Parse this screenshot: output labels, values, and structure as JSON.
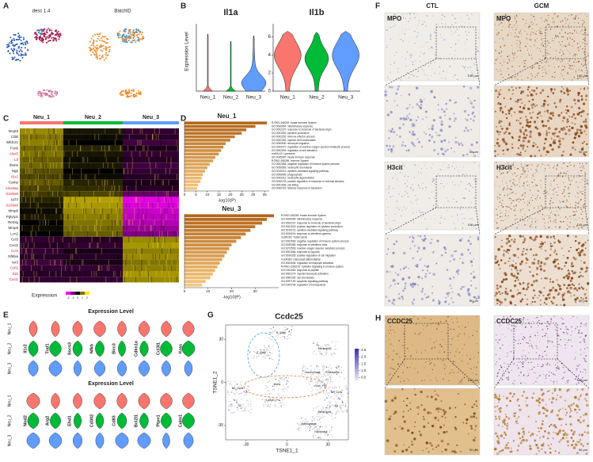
{
  "panel_labels": [
    "A",
    "B",
    "C",
    "D",
    "E",
    "F",
    "G",
    "H"
  ],
  "A": {
    "titles": [
      "desc 1.4",
      "BatchID"
    ]
  },
  "B": {
    "ylabel": "Expression Level",
    "colors": [
      "#f8766d",
      "#00ba38",
      "#619cff"
    ],
    "charts": [
      {
        "type": "violin",
        "title": "Il1a",
        "categories": [
          "Neu_1",
          "Neu_2",
          "Neu_3"
        ],
        "values": [
          6.3,
          5.5,
          6.1
        ],
        "ylim": [
          0,
          7
        ]
      },
      {
        "type": "violin",
        "title": "Il1b",
        "categories": [
          "Neu_1",
          "Neu_2",
          "Neu_3"
        ],
        "values": [
          6.6,
          6.5,
          6.6
        ],
        "ylim": [
          0,
          7
        ],
        "yticks": [
          0,
          2,
          4,
          6
        ]
      }
    ]
  },
  "C": {
    "type": "heatmap",
    "groups": [
      "Neu_1",
      "Neu_2",
      "Neu_3"
    ],
    "group_colors": [
      "#f8766d",
      "#00ba38",
      "#619cff"
    ],
    "genes": [
      {
        "name": "Mcpt8",
        "color": "#222222",
        "values": [
          1.2,
          0.2,
          -0.4
        ]
      },
      {
        "name": "Cd5l",
        "color": "#222222",
        "values": [
          1.0,
          0.1,
          -0.3
        ]
      },
      {
        "name": "Wfdc21",
        "color": "#222222",
        "values": [
          1.1,
          0.0,
          -0.5
        ]
      },
      {
        "name": "Fcnb",
        "color": "#222222",
        "values": [
          0.9,
          0.3,
          -0.2
        ]
      },
      {
        "name": "Alox5",
        "color": "#d42020",
        "values": [
          1.0,
          0.2,
          -0.4
        ]
      },
      {
        "name": "Ltf",
        "color": "#d42020",
        "values": [
          0.8,
          0.1,
          -0.3
        ]
      },
      {
        "name": "Ifitm6",
        "color": "#222222",
        "values": [
          0.9,
          0.2,
          -0.5
        ]
      },
      {
        "name": "Ngp",
        "color": "#222222",
        "values": [
          0.7,
          0.0,
          -0.4
        ]
      },
      {
        "name": "Il1r2",
        "color": "#d42020",
        "values": [
          0.6,
          0.1,
          -0.3
        ]
      },
      {
        "name": "Camp",
        "color": "#222222",
        "values": [
          0.8,
          0.3,
          -0.2
        ]
      },
      {
        "name": "Alox5ap",
        "color": "#d42020",
        "values": [
          0.6,
          0.4,
          -0.3
        ]
      },
      {
        "name": "S100a9",
        "color": "#d42020",
        "values": [
          0.5,
          0.6,
          -0.8
        ]
      },
      {
        "name": "Lyz2",
        "color": "#222222",
        "values": [
          0.3,
          1.4,
          -1.8
        ]
      },
      {
        "name": "S100a8",
        "color": "#d42020",
        "values": [
          0.2,
          1.3,
          -1.7
        ]
      },
      {
        "name": "Mmp8",
        "color": "#222222",
        "values": [
          0.1,
          1.2,
          -1.6
        ]
      },
      {
        "name": "Pglyrp1",
        "color": "#222222",
        "values": [
          0.2,
          1.1,
          -1.5
        ]
      },
      {
        "name": "Retnlg",
        "color": "#222222",
        "values": [
          0.0,
          1.0,
          -1.4
        ]
      },
      {
        "name": "Mmp9",
        "color": "#222222",
        "values": [
          0.1,
          0.9,
          -1.2
        ]
      },
      {
        "name": "Lcn2",
        "color": "#222222",
        "values": [
          0.0,
          0.8,
          -1.0
        ]
      },
      {
        "name": "Ccl3",
        "color": "#222222",
        "values": [
          -0.4,
          -0.3,
          1.2
        ]
      },
      {
        "name": "Cxcl2",
        "color": "#222222",
        "values": [
          -0.3,
          -0.4,
          1.3
        ]
      },
      {
        "name": "Ccl4",
        "color": "#d42020",
        "values": [
          -0.4,
          -0.2,
          1.1
        ]
      },
      {
        "name": "Nfkbia",
        "color": "#222222",
        "values": [
          -0.3,
          -0.3,
          1.2
        ]
      },
      {
        "name": "Ier3",
        "color": "#222222",
        "values": [
          -0.5,
          -0.2,
          1.0
        ]
      },
      {
        "name": "Ccrl2",
        "color": "#d42020",
        "values": [
          -0.4,
          -0.4,
          1.1
        ]
      },
      {
        "name": "Il1b",
        "color": "#d42020",
        "values": [
          -0.3,
          -0.3,
          1.3
        ]
      },
      {
        "name": "Cxcl1",
        "color": "#d42020",
        "values": [
          -0.4,
          -0.4,
          1.2
        ]
      }
    ],
    "legend_title": "Expression",
    "legend_ticks": [
      -2,
      -1,
      0,
      1,
      2
    ]
  },
  "D": {
    "xlabel": "-log10(P)",
    "color_top": "#b3671a",
    "color_bottom": "#f5c77e",
    "charts": [
      {
        "type": "bar",
        "title": "Neu_1",
        "xlim": [
          0,
          37
        ],
        "xticks": [
          0,
          5,
          10,
          15,
          20,
          25,
          30,
          35
        ],
        "categories": [
          "R-RNO-168249: Innate Immune System",
          "GO:0006954: inflammatory response",
          "GO:0002237: response to molecule of bacterial origin",
          "GO:0001816: cytokine production",
          "GO:0002252: immune effector process",
          "GO:0002262: myeloid cell homeostasis",
          "GO:0050900: leukocyte migration",
          "GO:2000377: regulation of reactive oxygen species metabolic process",
          "GO:0002694: regulation of cell activation",
          "rno04142: Lysosome",
          "GO:0045087: innate immune response",
          "R-RNO-168256: Immune System",
          "GO:0002683: negative regulation of immune system process",
          "GO:0030593: neutrophil chemotaxis",
          "GO:0019221: cytokine-mediated signaling pathway",
          "GO:0006909: phagocytosis",
          "GO:0043312: neutrophil degranulation",
          "GO:0032103: positive regulation of response to external stimulus",
          "GO:0001906: cell killing",
          "GO:0042742: defense response to bacterium"
        ],
        "values": [
          36,
          31,
          27,
          25,
          22,
          20,
          18,
          17,
          16,
          15,
          13.5,
          12.5,
          11,
          10,
          9,
          8,
          7.5,
          7,
          6,
          5.5
        ]
      },
      {
        "type": "bar",
        "title": "Neu_3",
        "xlim": [
          0,
          40
        ],
        "xticks": [
          0,
          10,
          20,
          30
        ],
        "categories": [
          "R-RNO-168249: Innate Immune System",
          "GO:0006954: inflammatory response",
          "GO:0002237: response to molecule of bacterial origin",
          "GO:0001819: positive regulation of cytokine production",
          "GO:0019221: cytokine-mediated signaling pathway",
          "GO:0034341: response to interferon-gamma",
          "rno05152: Tuberculosis",
          "GO:0002683: negative regulation of immune system process",
          "GO:0035456: response to interferon-beta",
          "GO:0072593: reactive oxygen species metabolic process",
          "GO:0001666: response to hypoxia",
          "GO:0030335: positive regulation of cell migration",
          "rno04380: Osteoclast differentiation",
          "GO:0002694: regulation of leukocyte activation",
          "R-RNO-1280215: Cytokine Signaling in Immune system",
          "GO:1901652: response to peptide",
          "GO:0002274: myeloid leukocyte activation",
          "GO:0060326: cell chemotaxis",
          "GO:0097190: apoptotic signaling pathway",
          "GO:1903706: regulation of hemopoiesis"
        ],
        "values": [
          38,
          35,
          33,
          30,
          28,
          26,
          24,
          22,
          20,
          19,
          18,
          17,
          16,
          15,
          14,
          13,
          12,
          11,
          9,
          7.5
        ]
      }
    ]
  },
  "E": {
    "title": "Expression Level",
    "groups": [
      "Neu_1",
      "Neu_2",
      "Neu_3"
    ],
    "genes_top": [
      "Il1r2",
      "Traf1",
      "Socs3",
      "Nfkb",
      "Birc3",
      "Cdkn1a",
      "Ccl3l1",
      "Kras"
    ],
    "genes_bottom": [
      "Nod2",
      "Arg2",
      "Ehd1",
      "Cd302",
      "Cd83",
      "Bcl2l1",
      "Ptpn1",
      "Calm1"
    ]
  },
  "F": {
    "columns": [
      "CTL",
      "GCM"
    ],
    "rows": [
      "MPO",
      "H3cit"
    ],
    "scale_large": "100 μm",
    "scale_small": "50 μm"
  },
  "G": {
    "title": "Ccdc25",
    "xlabel": "TSNE1_1",
    "ylabel": "TSNE1_2",
    "xlim": [
      -45,
      45
    ],
    "xticks": [
      -30,
      0,
      30
    ],
    "ylim": [
      -40,
      40
    ],
    "yticks": [
      -30,
      0,
      30
    ],
    "colorbar_lim": [
      0.3,
      2.6
    ],
    "colorbar_ticks": [
      0.5,
      {
        "value": 1,
        "label": "1.0"
      },
      1.5,
      {
        "value": 2,
        "label": "2.0"
      },
      2.5
    ],
    "clusters": [
      "B_Cells",
      "Neutrophil",
      "T_Cells",
      "Macrophage",
      "Endothelial",
      "Gran_Pro",
      "NK_Cells",
      "Mono",
      "DC",
      "Lymph_Pro",
      "Neutrophil",
      "Macrophage",
      "Fibroblast",
      "Ep",
      "NK_Cells"
    ]
  },
  "H": {
    "label": "CCDC25"
  }
}
